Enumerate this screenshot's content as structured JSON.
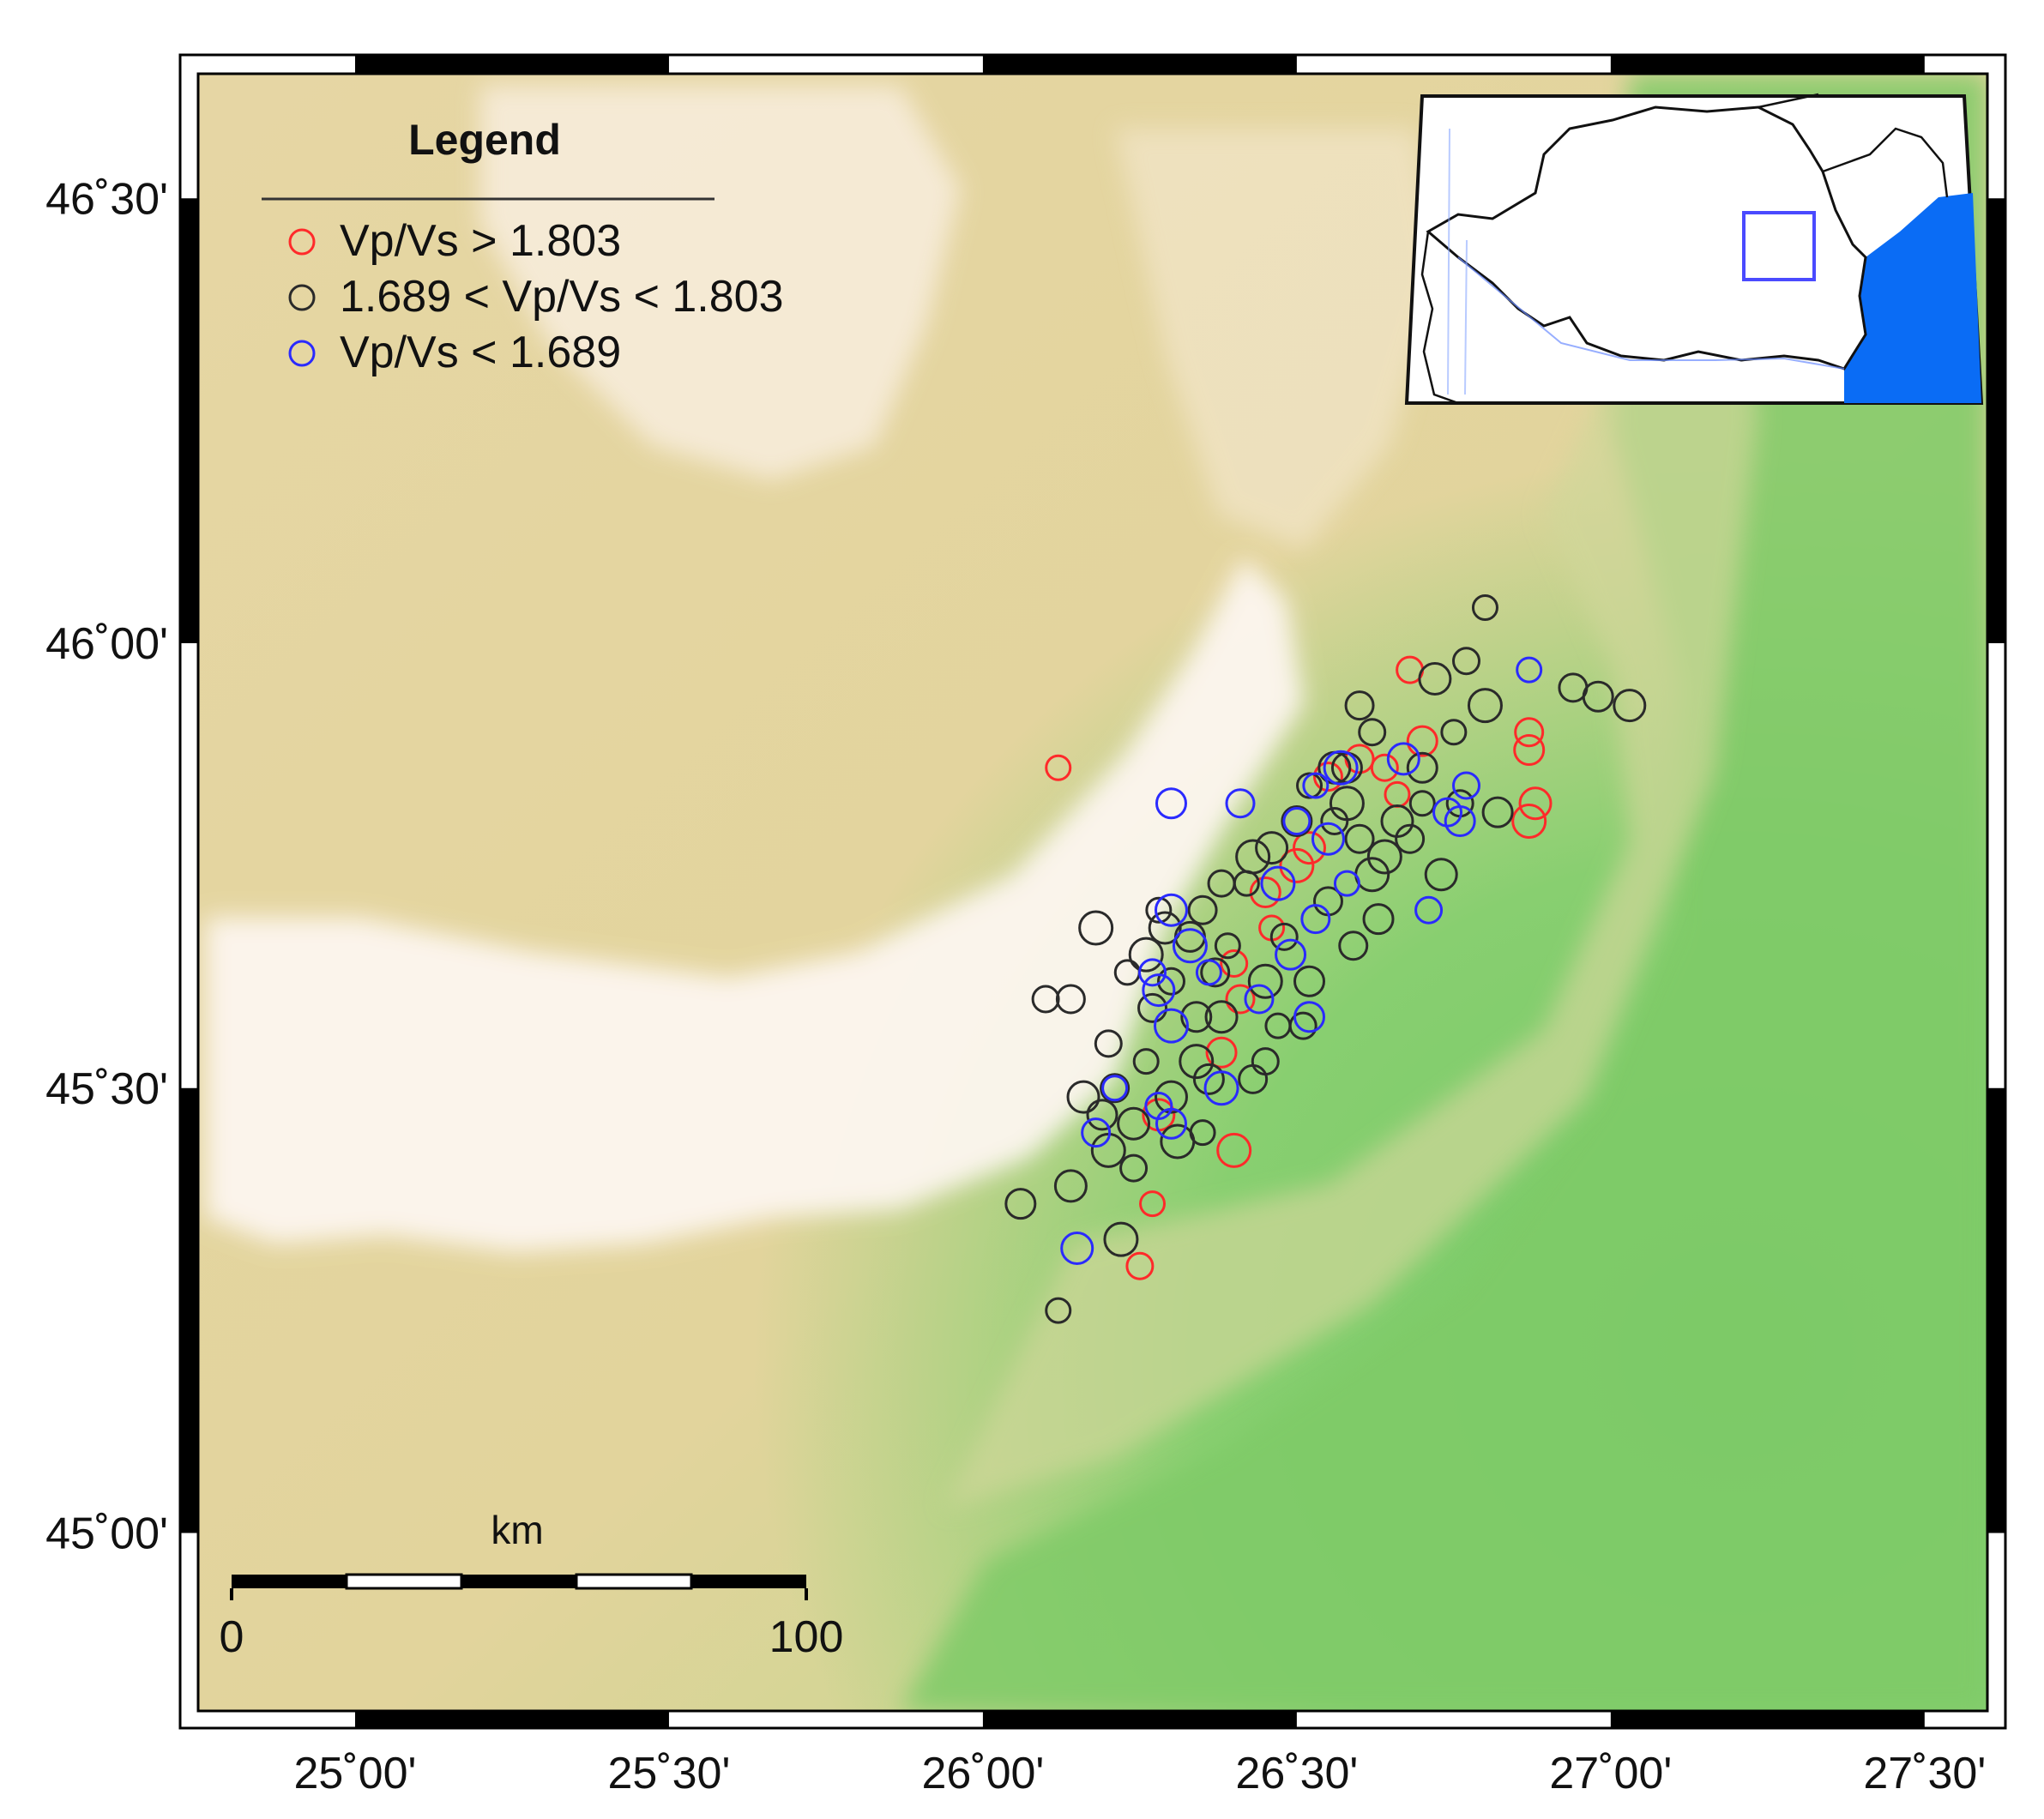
{
  "map": {
    "lon_range": [
      24.75,
      27.6
    ],
    "lat_range": [
      44.8,
      46.64
    ],
    "x_ticks": [
      {
        "value": 25.0,
        "label": "25˚00'"
      },
      {
        "value": 25.5,
        "label": "25˚30'"
      },
      {
        "value": 26.0,
        "label": "26˚00'"
      },
      {
        "value": 26.5,
        "label": "26˚30'"
      },
      {
        "value": 27.0,
        "label": "27˚00'"
      },
      {
        "value": 27.5,
        "label": "27˚30'"
      }
    ],
    "y_ticks": [
      {
        "value": 46.5,
        "label": "46˚30'"
      },
      {
        "value": 46.0,
        "label": "46˚00'"
      },
      {
        "value": 45.5,
        "label": "45˚30'"
      },
      {
        "value": 45.0,
        "label": "45˚00'"
      }
    ],
    "colors": {
      "mountain": "#fdf6ef",
      "hills": "#e8d3a3",
      "lowland": "#d7d59a",
      "plain": "#7fcb6a",
      "sea": "#0a6cf5",
      "frame": "#000000"
    }
  },
  "legend": {
    "title": "Legend",
    "items": [
      {
        "label": "Vp/Vs > 1.803",
        "color": "#ff2a2a"
      },
      {
        "label": "1.689 < Vp/Vs < 1.803",
        "color": "#2a2a2a"
      },
      {
        "label": "Vp/Vs < 1.689",
        "color": "#2a2aff"
      }
    ]
  },
  "scale_bar": {
    "unit": "km",
    "start_label": "0",
    "end_label": "100",
    "length_km": 100
  },
  "inset": {
    "box_color": "#4a4aff"
  },
  "events": {
    "groups": [
      {
        "name": "Vp/Vs > 1.803",
        "color": "#ff2a2a",
        "points": [
          [
            26.12,
            45.86
          ],
          [
            26.68,
            45.97
          ],
          [
            26.87,
            45.9
          ],
          [
            26.87,
            45.88
          ],
          [
            26.88,
            45.82
          ],
          [
            26.87,
            45.8
          ],
          [
            26.66,
            45.83
          ],
          [
            26.64,
            45.86
          ],
          [
            26.55,
            45.85
          ],
          [
            26.7,
            45.89
          ],
          [
            26.52,
            45.77
          ],
          [
            26.5,
            45.75
          ],
          [
            26.46,
            45.68
          ],
          [
            26.4,
            45.64
          ],
          [
            26.41,
            45.6
          ],
          [
            26.38,
            45.54
          ],
          [
            26.28,
            45.47
          ],
          [
            26.4,
            45.43
          ],
          [
            26.27,
            45.37
          ],
          [
            26.25,
            45.3
          ],
          [
            26.6,
            45.87
          ],
          [
            26.45,
            45.72
          ]
        ]
      },
      {
        "name": "1.689 < Vp/Vs < 1.803",
        "color": "#2a2a2a",
        "points": [
          [
            26.8,
            46.04
          ],
          [
            26.77,
            45.98
          ],
          [
            26.94,
            45.95
          ],
          [
            26.98,
            45.94
          ],
          [
            27.03,
            45.93
          ],
          [
            26.8,
            45.93
          ],
          [
            26.75,
            45.9
          ],
          [
            26.62,
            45.9
          ],
          [
            26.6,
            45.93
          ],
          [
            26.7,
            45.86
          ],
          [
            26.56,
            45.86
          ],
          [
            26.58,
            45.82
          ],
          [
            26.52,
            45.84
          ],
          [
            26.56,
            45.8
          ],
          [
            26.6,
            45.78
          ],
          [
            26.5,
            45.8
          ],
          [
            26.46,
            45.77
          ],
          [
            26.43,
            45.76
          ],
          [
            26.42,
            45.73
          ],
          [
            26.38,
            45.73
          ],
          [
            26.35,
            45.7
          ],
          [
            26.33,
            45.67
          ],
          [
            26.29,
            45.68
          ],
          [
            26.26,
            45.65
          ],
          [
            26.23,
            45.63
          ],
          [
            26.3,
            45.62
          ],
          [
            26.37,
            45.63
          ],
          [
            26.34,
            45.58
          ],
          [
            26.38,
            45.58
          ],
          [
            26.45,
            45.62
          ],
          [
            26.47,
            45.57
          ],
          [
            26.51,
            45.57
          ],
          [
            26.43,
            45.51
          ],
          [
            26.36,
            45.51
          ],
          [
            26.3,
            45.49
          ],
          [
            26.34,
            45.53
          ],
          [
            26.26,
            45.53
          ],
          [
            26.2,
            45.55
          ],
          [
            26.21,
            45.5
          ],
          [
            26.19,
            45.47
          ],
          [
            26.24,
            45.46
          ],
          [
            26.2,
            45.43
          ],
          [
            26.35,
            45.45
          ],
          [
            26.1,
            45.6
          ],
          [
            26.14,
            45.6
          ],
          [
            26.06,
            45.37
          ],
          [
            26.14,
            45.39
          ],
          [
            26.22,
            45.33
          ],
          [
            26.12,
            45.25
          ],
          [
            26.24,
            45.41
          ],
          [
            26.59,
            45.66
          ],
          [
            26.63,
            45.69
          ],
          [
            26.73,
            45.74
          ],
          [
            26.64,
            45.76
          ],
          [
            26.7,
            45.82
          ],
          [
            26.76,
            45.82
          ],
          [
            26.68,
            45.78
          ],
          [
            26.82,
            45.81
          ],
          [
            26.72,
            45.96
          ],
          [
            26.62,
            45.74
          ],
          [
            26.28,
            45.7
          ],
          [
            26.48,
            45.67
          ],
          [
            26.55,
            45.71
          ],
          [
            26.52,
            45.62
          ],
          [
            26.16,
            45.49
          ],
          [
            26.31,
            45.44
          ],
          [
            26.39,
            45.66
          ],
          [
            26.45,
            45.53
          ],
          [
            26.27,
            45.59
          ],
          [
            26.58,
            45.86
          ],
          [
            26.66,
            45.8
          ],
          [
            26.18,
            45.68
          ]
        ]
      },
      {
        "name": "Vp/Vs < 1.689",
        "color": "#2a2aff",
        "points": [
          [
            26.87,
            45.97
          ],
          [
            26.77,
            45.84
          ],
          [
            26.74,
            45.81
          ],
          [
            26.76,
            45.8
          ],
          [
            26.67,
            45.87
          ],
          [
            26.57,
            45.86
          ],
          [
            26.53,
            45.84
          ],
          [
            26.5,
            45.8
          ],
          [
            26.41,
            45.82
          ],
          [
            26.3,
            45.82
          ],
          [
            26.55,
            45.78
          ],
          [
            26.47,
            45.73
          ],
          [
            26.58,
            45.73
          ],
          [
            26.71,
            45.7
          ],
          [
            26.53,
            45.69
          ],
          [
            26.49,
            45.65
          ],
          [
            26.3,
            45.7
          ],
          [
            26.33,
            45.66
          ],
          [
            26.36,
            45.63
          ],
          [
            26.27,
            45.63
          ],
          [
            26.44,
            45.6
          ],
          [
            26.52,
            45.58
          ],
          [
            26.28,
            45.61
          ],
          [
            26.3,
            45.57
          ],
          [
            26.21,
            45.5
          ],
          [
            26.28,
            45.48
          ],
          [
            26.18,
            45.45
          ],
          [
            26.3,
            45.46
          ],
          [
            26.15,
            45.32
          ],
          [
            26.38,
            45.5
          ]
        ]
      }
    ]
  }
}
